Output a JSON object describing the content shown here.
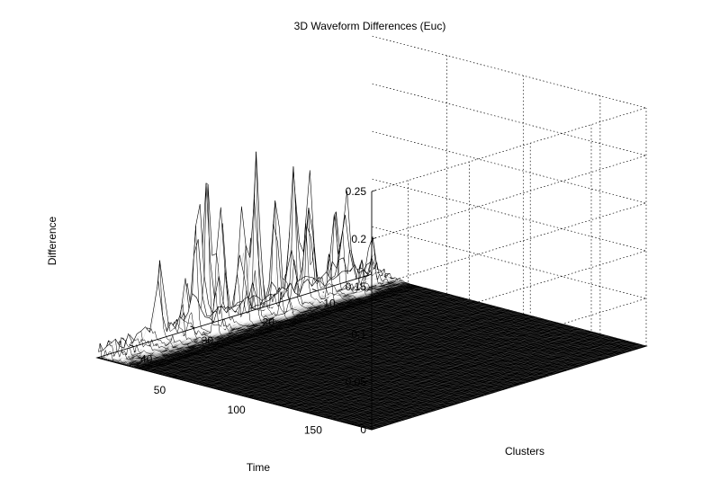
{
  "chart_data": {
    "type": "surface",
    "title": "3D Waveform Differences (Euc)",
    "xlabel": "Time",
    "ylabel": "Clusters",
    "zlabel": "Difference",
    "x_ticks": [
      50,
      100,
      150
    ],
    "y_ticks": [
      10,
      20,
      30,
      40
    ],
    "z_ticks": [
      "0",
      "0.05",
      "0.1",
      "0.15",
      "0.2",
      "0.25"
    ],
    "xlim": [
      1,
      180
    ],
    "ylim": [
      1,
      46
    ],
    "zlim": [
      0,
      0.25
    ],
    "grid": true,
    "surface_color": "#000000",
    "mesh_color": "#ffffff",
    "description_of_surface": "Near-zero differences across most of the time/cluster grid; spiky region at low time values (1-30) across all clusters, with peaks up to about 0.17",
    "peaks": [
      {
        "time": 3,
        "cluster": 30,
        "difference": 0.138
      },
      {
        "time": 5,
        "cluster": 29,
        "difference": 0.165
      },
      {
        "time": 6,
        "cluster": 27,
        "difference": 0.13
      },
      {
        "time": 9,
        "cluster": 22,
        "difference": 0.168
      },
      {
        "time": 8,
        "cluster": 24,
        "difference": 0.12
      },
      {
        "time": 10,
        "cluster": 19,
        "difference": 0.125
      },
      {
        "time": 6,
        "cluster": 15,
        "difference": 0.14
      },
      {
        "time": 8,
        "cluster": 13,
        "difference": 0.135
      },
      {
        "time": 4,
        "cluster": 12,
        "difference": 0.09
      },
      {
        "time": 5,
        "cluster": 8,
        "difference": 0.085
      },
      {
        "time": 4,
        "cluster": 6,
        "difference": 0.092
      },
      {
        "time": 14,
        "cluster": 24,
        "difference": 0.085
      },
      {
        "time": 12,
        "cluster": 17,
        "difference": 0.08
      },
      {
        "time": 16,
        "cluster": 30,
        "difference": 0.06
      },
      {
        "time": 11,
        "cluster": 34,
        "difference": 0.065
      },
      {
        "time": 2,
        "cluster": 36,
        "difference": 0.07
      },
      {
        "time": 18,
        "cluster": 12,
        "difference": 0.055
      },
      {
        "time": 20,
        "cluster": 20,
        "difference": 0.045
      },
      {
        "time": 22,
        "cluster": 8,
        "difference": 0.04
      },
      {
        "time": 13,
        "cluster": 4,
        "difference": 0.05
      }
    ]
  }
}
